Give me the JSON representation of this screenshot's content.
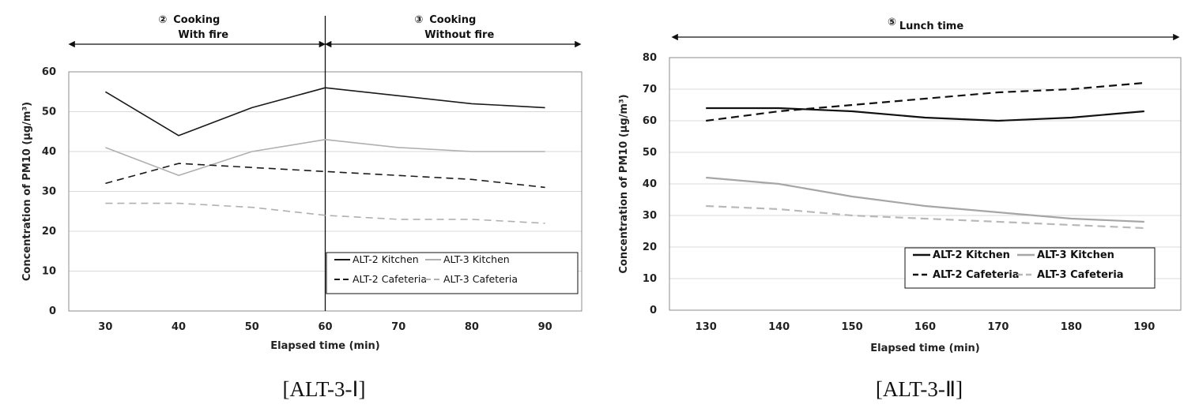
{
  "chart_data": [
    {
      "type": "line",
      "caption": "[ALT-3-Ⅰ]",
      "xlabel": "Elapsed time (min)",
      "ylabel": "Concentration of PM10 (μg/m³)",
      "x": [
        30,
        40,
        50,
        60,
        70,
        80,
        90
      ],
      "xlim": [
        25,
        95
      ],
      "ylim": [
        0,
        60
      ],
      "yticks": [
        0,
        10,
        20,
        30,
        40,
        50,
        60
      ],
      "grid": true,
      "legend_position": "bottom-right",
      "divider_x": 60,
      "phases": [
        {
          "symbol": "②",
          "line1": "Cooking",
          "line2": "With fire"
        },
        {
          "symbol": "③",
          "line1": "Cooking",
          "line2": "Without fire"
        }
      ],
      "series": [
        {
          "name": "ALT-2 Kitchen",
          "color": "#1a1a1a",
          "dash": "solid",
          "values": [
            55,
            44,
            51,
            56,
            54,
            52,
            51
          ]
        },
        {
          "name": "ALT-3 Kitchen",
          "color": "#b0b0b0",
          "dash": "solid",
          "values": [
            41,
            34,
            40,
            43,
            41,
            40,
            40
          ]
        },
        {
          "name": "ALT-2 Cafeteria",
          "color": "#1a1a1a",
          "dash": "dashed",
          "values": [
            32,
            37,
            36,
            35,
            34,
            33,
            31
          ]
        },
        {
          "name": "ALT-3 Cafeteria",
          "color": "#b0b0b0",
          "dash": "dashed",
          "values": [
            27,
            27,
            26,
            24,
            23,
            23,
            22
          ]
        }
      ]
    },
    {
      "type": "line",
      "caption": "[ALT-3-Ⅱ]",
      "xlabel": "Elapsed time (min)",
      "ylabel": "Concentration of PM10 (μg/m³)",
      "x": [
        130,
        140,
        150,
        160,
        170,
        180,
        190
      ],
      "xlim": [
        125,
        195
      ],
      "ylim": [
        0,
        80
      ],
      "yticks": [
        0,
        10,
        20,
        30,
        40,
        50,
        60,
        70,
        80
      ],
      "grid": true,
      "legend_position": "bottom-right",
      "phases": [
        {
          "symbol": "⑤",
          "line1": "Lunch time",
          "line2": ""
        }
      ],
      "series": [
        {
          "name": "ALT-2 Kitchen",
          "color": "#111111",
          "dash": "solid",
          "values": [
            64,
            64,
            63,
            61,
            60,
            61,
            63
          ]
        },
        {
          "name": "ALT-3 Kitchen",
          "color": "#a6a6a6",
          "dash": "solid",
          "values": [
            42,
            40,
            36,
            33,
            31,
            29,
            28
          ]
        },
        {
          "name": "ALT-2 Cafeteria",
          "color": "#111111",
          "dash": "dashed",
          "values": [
            60,
            63,
            65,
            67,
            69,
            70,
            72
          ]
        },
        {
          "name": "ALT-3 Cafeteria",
          "color": "#b8b8b8",
          "dash": "dashed",
          "values": [
            33,
            32,
            30,
            29,
            28,
            27,
            26
          ]
        }
      ]
    }
  ]
}
